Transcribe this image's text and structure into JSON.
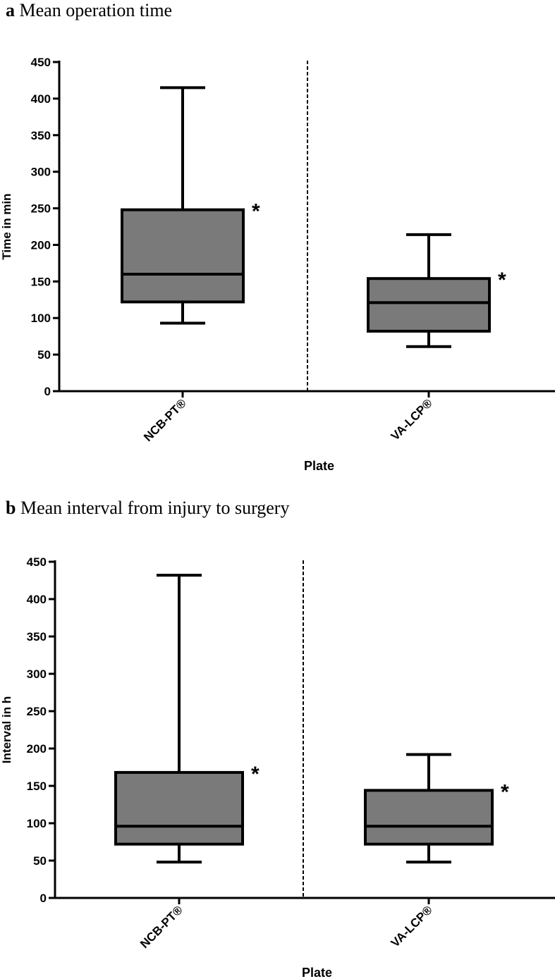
{
  "chart_data": [
    {
      "type": "boxplot",
      "panel": "a",
      "title": "Mean operation time",
      "ylabel": "Time in min",
      "xlabel": "Plate",
      "ylim": [
        0,
        450
      ],
      "yticks": [
        0,
        50,
        100,
        150,
        200,
        250,
        300,
        350,
        400,
        450
      ],
      "categories": [
        "NCB-PT®",
        "VA-LCP®"
      ],
      "boxes": [
        {
          "name": "NCB-PT®",
          "min": 93,
          "q1": 122,
          "median": 160,
          "q3": 248,
          "max": 415,
          "annotation": "*"
        },
        {
          "name": "VA-LCP®",
          "min": 61,
          "q1": 82,
          "median": 121,
          "q3": 154,
          "max": 214,
          "annotation": "*"
        }
      ]
    },
    {
      "type": "boxplot",
      "panel": "b",
      "title": "Mean interval from injury to surgery",
      "ylabel": "Interval in h",
      "xlabel": "Plate",
      "ylim": [
        0,
        450
      ],
      "yticks": [
        0,
        50,
        100,
        150,
        200,
        250,
        300,
        350,
        400,
        450
      ],
      "categories": [
        "NCB-PT®",
        "VA-LCP®"
      ],
      "boxes": [
        {
          "name": "NCB-PT®",
          "min": 48,
          "q1": 72,
          "median": 96,
          "q3": 168,
          "max": 432,
          "annotation": "*"
        },
        {
          "name": "VA-LCP®",
          "min": 48,
          "q1": 72,
          "median": 96,
          "q3": 144,
          "max": 192,
          "annotation": "*"
        }
      ]
    }
  ]
}
